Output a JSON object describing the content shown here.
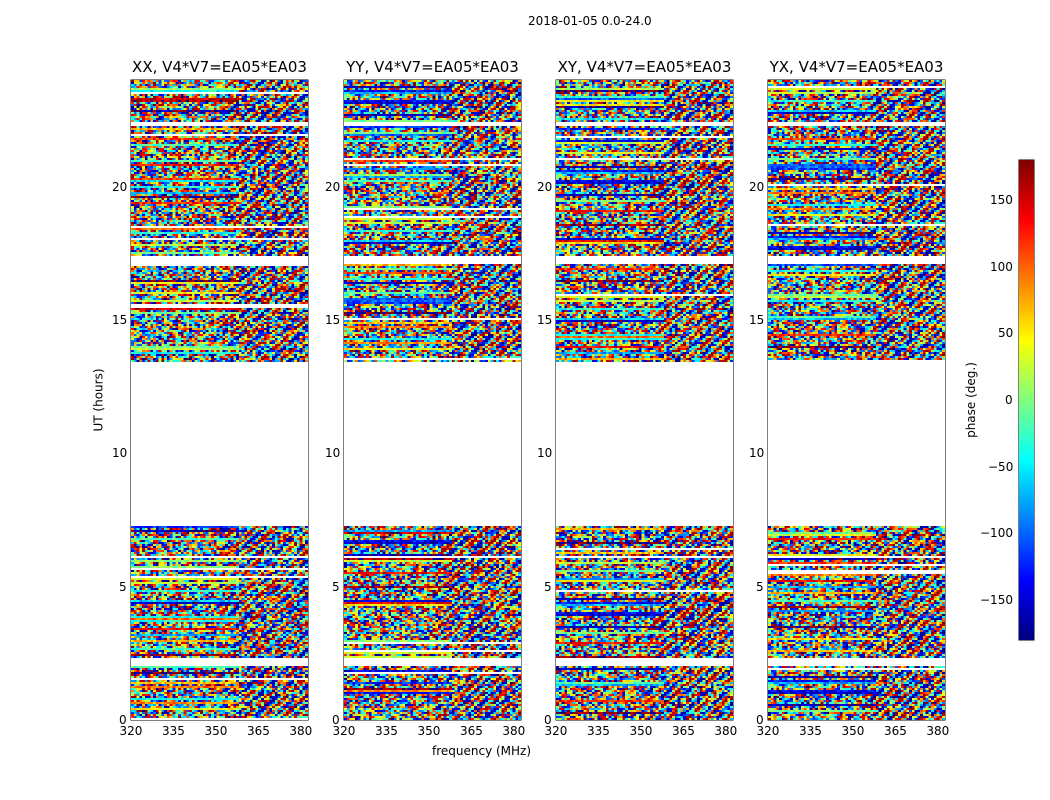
{
  "chart_data": {
    "type": "heatmap",
    "title": "2018-01-05 0.0-24.0",
    "xlabel": "frequency (MHz)",
    "ylabel": "UT (hours)",
    "xlim": [
      320,
      382.5
    ],
    "ylim": [
      0,
      24
    ],
    "xticks": [
      320,
      335,
      350,
      365,
      380
    ],
    "yticks": [
      0,
      5,
      10,
      15,
      20
    ],
    "panels": [
      {
        "title": "XX, V4*V7=EA05*EA03"
      },
      {
        "title": "YY, V4*V7=EA05*EA03"
      },
      {
        "title": "XY, V4*V7=EA05*EA03"
      },
      {
        "title": "YX, V4*V7=EA05*EA03"
      }
    ],
    "flagged_time_ranges_hours": [
      [
        7.3,
        13.4
      ],
      [
        2.05,
        2.3
      ],
      [
        17.1,
        17.4
      ],
      [
        0.95,
        1.0
      ],
      [
        6.05,
        6.12
      ],
      [
        22.3,
        22.4
      ]
    ],
    "colormap": "jet",
    "colorbar": {
      "label": "phase (deg.)",
      "range": [
        -180,
        180
      ],
      "ticks": [
        -150,
        -100,
        -50,
        0,
        50,
        100,
        150
      ]
    },
    "values_note": "phase noise per frequency channel / time bin"
  }
}
